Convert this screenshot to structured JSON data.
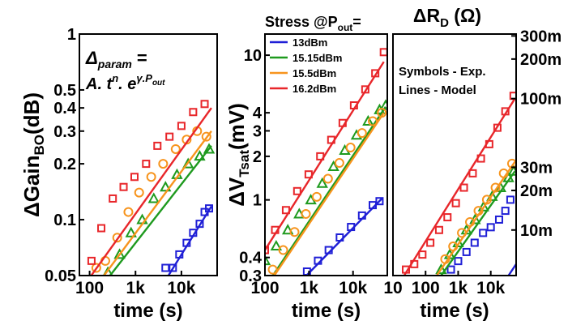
{
  "colors": {
    "13dBm": "#1f1fd6",
    "15.15dBm": "#1e9a1e",
    "15.5dBm": "#f7941d",
    "16.2dBm": "#e8262a",
    "frame": "#000000"
  },
  "chart_data": [
    {
      "type": "scatter",
      "id": "gain",
      "ylabel": "ΔGain",
      "ylabel_sub": "BO",
      "ylabel_unit": "(dB)",
      "xlabel": "time (s)",
      "xscale": "log",
      "yscale": "log",
      "xlim": [
        60,
        60000
      ],
      "ylim": [
        0.05,
        1
      ],
      "xticks": [
        {
          "v": 100,
          "label": "100"
        },
        {
          "v": 1000,
          "label": "1k"
        },
        {
          "v": 10000,
          "label": "10k"
        }
      ],
      "yticks": [
        {
          "v": 0.05,
          "label": "0.05"
        },
        {
          "v": 0.1,
          "label": "0.1"
        },
        {
          "v": 0.2,
          "label": "0.2"
        },
        {
          "v": 0.3,
          "label": "0.3"
        },
        {
          "v": 0.4,
          "label": "0.4"
        },
        {
          "v": 0.5,
          "label": "0.5"
        },
        {
          "v": 1,
          "label": "1"
        }
      ],
      "annotation": {
        "line1": "Δ",
        "line1_sub": "param",
        "line1_eq": " =",
        "line2": "A. t",
        "line2_sup": "n",
        "line2_mid": ". e",
        "line2_sup2": "γ.P",
        "line2_sup2_sub": "out"
      },
      "series": [
        {
          "key": "13dBm",
          "marker": "square",
          "points": [
            [
              4500,
              0.055
            ],
            [
              6500,
              0.055
            ],
            [
              9000,
              0.065
            ],
            [
              13000,
              0.075
            ],
            [
              18000,
              0.085
            ],
            [
              25000,
              0.095
            ],
            [
              32000,
              0.11
            ],
            [
              40000,
              0.115
            ]
          ],
          "fit": [
            [
              4000,
              0.045
            ],
            [
              45000,
              0.118
            ]
          ]
        },
        {
          "key": "15.15dBm",
          "marker": "triangle",
          "points": [
            [
              250,
              0.052
            ],
            [
              450,
              0.065
            ],
            [
              800,
              0.085
            ],
            [
              1400,
              0.1
            ],
            [
              2500,
              0.13
            ],
            [
              4500,
              0.15
            ],
            [
              8000,
              0.175
            ],
            [
              14000,
              0.2
            ],
            [
              25000,
              0.22
            ],
            [
              40000,
              0.24
            ]
          ],
          "fit": [
            [
              200,
              0.045
            ],
            [
              45000,
              0.25
            ]
          ]
        },
        {
          "key": "15.5dBm",
          "marker": "circle",
          "points": [
            [
              140,
              0.055
            ],
            [
              220,
              0.06
            ],
            [
              400,
              0.08
            ],
            [
              700,
              0.11
            ],
            [
              1200,
              0.14
            ],
            [
              2200,
              0.17
            ],
            [
              4000,
              0.2
            ],
            [
              7500,
              0.24
            ],
            [
              13000,
              0.27
            ],
            [
              22000,
              0.3
            ],
            [
              35000,
              0.28
            ]
          ],
          "fit": [
            [
              150,
              0.045
            ],
            [
              45000,
              0.3
            ]
          ]
        },
        {
          "key": "16.2dBm",
          "marker": "square",
          "points": [
            [
              110,
              0.06
            ],
            [
              180,
              0.09
            ],
            [
              320,
              0.13
            ],
            [
              550,
              0.15
            ],
            [
              950,
              0.17
            ],
            [
              1700,
              0.2
            ],
            [
              3000,
              0.25
            ],
            [
              5500,
              0.28
            ],
            [
              10000,
              0.32
            ],
            [
              18000,
              0.38
            ],
            [
              32000,
              0.42
            ]
          ],
          "fit": [
            [
              80,
              0.045
            ],
            [
              45000,
              0.4
            ]
          ]
        }
      ]
    },
    {
      "type": "scatter",
      "id": "vsat",
      "title": "Stress @P",
      "title_sub": "out",
      "title_suffix": "=",
      "ylabel": "ΔV",
      "ylabel_sub": "Tsat",
      "ylabel_unit": "(mV)",
      "xlabel": "time (s)",
      "xscale": "log",
      "yscale": "log",
      "xlim": [
        100,
        60000
      ],
      "ylim": [
        0.3,
        14
      ],
      "xticks": [
        {
          "v": 100,
          "label": "100"
        },
        {
          "v": 1000,
          "label": "1k"
        },
        {
          "v": 10000,
          "label": "10k"
        }
      ],
      "yticks": [
        {
          "v": 0.3,
          "label": "0.3"
        },
        {
          "v": 0.4,
          "label": "0.4"
        },
        {
          "v": 1,
          "label": "1"
        },
        {
          "v": 2,
          "label": "2"
        },
        {
          "v": 3,
          "label": "3"
        },
        {
          "v": 4,
          "label": "4"
        },
        {
          "v": 10,
          "label": "10"
        }
      ],
      "legend": {
        "placement": "top-left",
        "entries": [
          "13dBm",
          "15.15dBm",
          "15.5dBm",
          "16.2dBm"
        ]
      },
      "series": [
        {
          "key": "13dBm",
          "marker": "square",
          "points": [
            [
              900,
              0.32
            ],
            [
              1600,
              0.38
            ],
            [
              2800,
              0.45
            ],
            [
              5000,
              0.55
            ],
            [
              9000,
              0.65
            ],
            [
              16000,
              0.78
            ],
            [
              28000,
              0.92
            ],
            [
              40000,
              0.98
            ]
          ],
          "fit": [
            [
              700,
              0.28
            ],
            [
              45000,
              1.02
            ]
          ]
        },
        {
          "key": "15.15dBm",
          "marker": "triangle",
          "points": [
            [
              100,
              0.38
            ],
            [
              180,
              0.48
            ],
            [
              330,
              0.62
            ],
            [
              600,
              0.8
            ],
            [
              1100,
              1.0
            ],
            [
              2000,
              1.3
            ],
            [
              3600,
              1.7
            ],
            [
              6500,
              2.2
            ],
            [
              12000,
              2.8
            ],
            [
              22000,
              3.5
            ],
            [
              40000,
              4.2
            ],
            [
              55000,
              4.5
            ]
          ],
          "fit": [
            [
              130,
              0.28
            ],
            [
              55000,
              4.4
            ]
          ]
        },
        {
          "key": "15.5dBm",
          "marker": "circle",
          "points": [
            [
              150,
              0.33
            ],
            [
              260,
              0.45
            ],
            [
              470,
              0.6
            ],
            [
              850,
              0.8
            ],
            [
              1500,
              1.05
            ],
            [
              2700,
              1.4
            ],
            [
              4900,
              1.8
            ],
            [
              8800,
              2.3
            ],
            [
              16000,
              2.9
            ],
            [
              28000,
              3.5
            ],
            [
              45000,
              4.0
            ]
          ],
          "fit": [
            [
              140,
              0.28
            ],
            [
              50000,
              4.0
            ]
          ]
        },
        {
          "key": "16.2dBm",
          "marker": "square",
          "points": [
            [
              100,
              0.45
            ],
            [
              170,
              0.62
            ],
            [
              300,
              0.85
            ],
            [
              540,
              1.15
            ],
            [
              980,
              1.5
            ],
            [
              1800,
              2.0
            ],
            [
              3200,
              2.6
            ],
            [
              5800,
              3.4
            ],
            [
              10500,
              4.5
            ],
            [
              19000,
              5.8
            ],
            [
              32000,
              7.5
            ],
            [
              50000,
              10.5
            ]
          ],
          "fit": [
            [
              100,
              0.45
            ],
            [
              50000,
              9.0
            ]
          ]
        }
      ]
    },
    {
      "type": "scatter",
      "id": "rd",
      "title": "ΔR",
      "title_sub": "D",
      "title_suffix": " (Ω)",
      "xlabel": "time (s)",
      "xscale": "log",
      "yscale": "log",
      "xlim": [
        10,
        60000
      ],
      "ylim": [
        0.0045,
        0.31
      ],
      "xticks": [
        {
          "v": 10,
          "label": "10"
        },
        {
          "v": 100,
          "label": "100"
        },
        {
          "v": 1000,
          "label": "1k"
        },
        {
          "v": 10000,
          "label": "10k"
        }
      ],
      "yticks": [
        {
          "v": 0.01,
          "label": "10m"
        },
        {
          "v": 0.02,
          "label": "20m"
        },
        {
          "v": 0.03,
          "label": "30m"
        },
        {
          "v": 0.1,
          "label": "100m"
        },
        {
          "v": 0.2,
          "label": "200m"
        },
        {
          "v": 0.3,
          "label": "300m"
        }
      ],
      "annotation": {
        "line1": "Symbols - Exp.",
        "line2": "Lines - Model"
      },
      "series": [
        {
          "key": "13dBm",
          "marker": "square",
          "points": [
            [
              600,
              0.005
            ],
            [
              1000,
              0.0058
            ],
            [
              1800,
              0.0068
            ],
            [
              3200,
              0.008
            ],
            [
              5800,
              0.0095
            ],
            [
              10000,
              0.0105
            ],
            [
              18000,
              0.012
            ],
            [
              28000,
              0.014
            ],
            [
              40000,
              0.017
            ]
          ],
          "fit": [
            [
              35000,
              0.0045
            ],
            [
              60000,
              0.0055
            ]
          ]
        },
        {
          "key": "15.15dBm",
          "marker": "triangle",
          "points": [
            [
              300,
              0.005
            ],
            [
              550,
              0.0065
            ],
            [
              1000,
              0.008
            ],
            [
              1800,
              0.01
            ],
            [
              3300,
              0.012
            ],
            [
              6000,
              0.015
            ],
            [
              11000,
              0.018
            ],
            [
              20000,
              0.021
            ],
            [
              35000,
              0.025
            ],
            [
              50000,
              0.028
            ]
          ],
          "fit": [
            [
              300,
              0.0045
            ],
            [
              55000,
              0.028
            ]
          ]
        },
        {
          "key": "15.5dBm",
          "marker": "circle",
          "points": [
            [
              400,
              0.006
            ],
            [
              700,
              0.0075
            ],
            [
              1300,
              0.0095
            ],
            [
              2300,
              0.0115
            ],
            [
              4200,
              0.014
            ],
            [
              7600,
              0.017
            ],
            [
              14000,
              0.021
            ],
            [
              25000,
              0.027
            ],
            [
              45000,
              0.032
            ]
          ],
          "fit": [
            [
              220,
              0.0045
            ],
            [
              55000,
              0.033
            ]
          ]
        },
        {
          "key": "16.2dBm",
          "marker": "square",
          "points": [
            [
              25,
              0.005
            ],
            [
              45,
              0.0055
            ],
            [
              80,
              0.0065
            ],
            [
              140,
              0.008
            ],
            [
              260,
              0.01
            ],
            [
              470,
              0.0125
            ],
            [
              850,
              0.016
            ],
            [
              1500,
              0.021
            ],
            [
              2800,
              0.027
            ],
            [
              5000,
              0.035
            ],
            [
              9000,
              0.045
            ],
            [
              16000,
              0.06
            ],
            [
              28000,
              0.08
            ],
            [
              50000,
              0.105
            ]
          ],
          "fit": [
            [
              22,
              0.0045
            ],
            [
              55000,
              0.1
            ]
          ]
        }
      ]
    }
  ]
}
